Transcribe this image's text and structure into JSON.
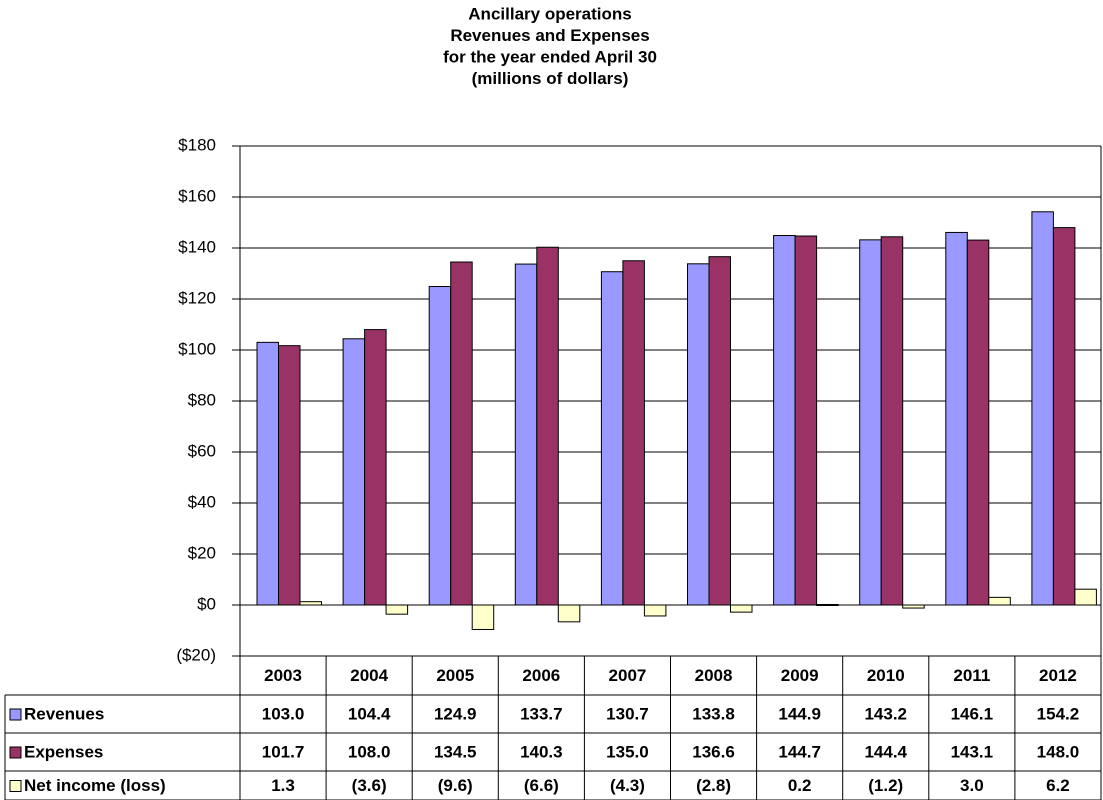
{
  "chart_data": {
    "type": "bar",
    "title": [
      "Ancillary operations",
      "Revenues and Expenses",
      "for the year ended April 30",
      "(millions of dollars)"
    ],
    "categories": [
      "2003",
      "2004",
      "2005",
      "2006",
      "2007",
      "2008",
      "2009",
      "2010",
      "2011",
      "2012"
    ],
    "series": [
      {
        "name": "Revenues",
        "color": "#9999ff",
        "values": [
          103.0,
          104.4,
          124.9,
          133.7,
          130.7,
          133.8,
          144.9,
          143.2,
          146.1,
          154.2
        ],
        "value_labels": [
          "103.0",
          "104.4",
          "124.9",
          "133.7",
          "130.7",
          "133.8",
          "144.9",
          "143.2",
          "146.1",
          "154.2"
        ]
      },
      {
        "name": "Expenses",
        "color": "#993366",
        "values": [
          101.7,
          108.0,
          134.5,
          140.3,
          135.0,
          136.6,
          144.7,
          144.4,
          143.1,
          148.0
        ],
        "value_labels": [
          "101.7",
          "108.0",
          "134.5",
          "140.3",
          "135.0",
          "136.6",
          "144.7",
          "144.4",
          "143.1",
          "148.0"
        ]
      },
      {
        "name": "Net income (loss)",
        "color": "#ffffcc",
        "values": [
          1.3,
          -3.6,
          -9.6,
          -6.6,
          -4.3,
          -2.8,
          0.2,
          -1.2,
          3.0,
          6.2
        ],
        "value_labels": [
          "1.3",
          "(3.6)",
          "(9.6)",
          "(6.6)",
          "(4.3)",
          "(2.8)",
          "0.2",
          "(1.2)",
          "3.0",
          "6.2"
        ]
      }
    ],
    "ylim": [
      -20,
      180
    ],
    "yticks": [
      {
        "value": -20,
        "label": "($20)"
      },
      {
        "value": 0,
        "label": "$0"
      },
      {
        "value": 20,
        "label": "$20"
      },
      {
        "value": 40,
        "label": "$40"
      },
      {
        "value": 60,
        "label": "$60"
      },
      {
        "value": 80,
        "label": "$80"
      },
      {
        "value": 100,
        "label": "$100"
      },
      {
        "value": 120,
        "label": "$120"
      },
      {
        "value": 140,
        "label": "$140"
      },
      {
        "value": 160,
        "label": "$160"
      },
      {
        "value": 180,
        "label": "$180"
      }
    ],
    "grid": true
  }
}
